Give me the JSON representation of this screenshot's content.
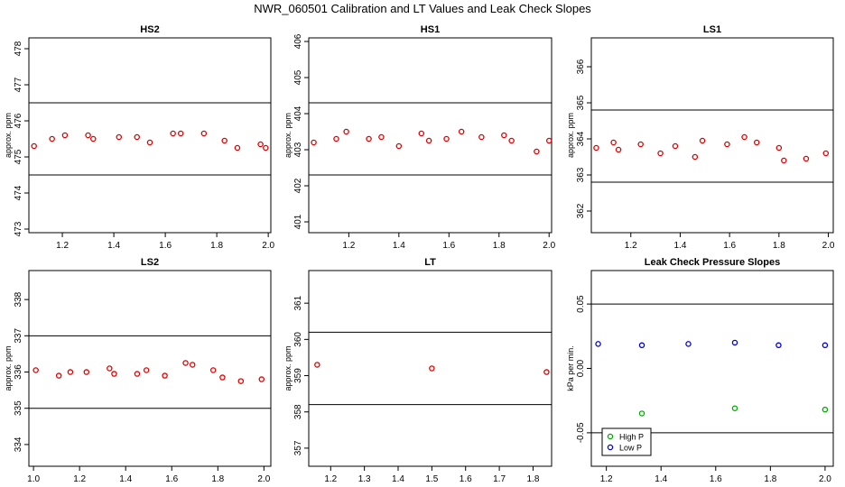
{
  "title": "NWR_060501  Calibration and LT Values and Leak Check Slopes",
  "chart_data": [
    {
      "type": "scatter",
      "title": "HS2",
      "ylabel": "approx. ppm",
      "xlim": [
        1.07,
        2.01
      ],
      "ylim": [
        472.9,
        478.3
      ],
      "xticks": [
        "1.2",
        "1.4",
        "1.6",
        "1.8",
        "2.0"
      ],
      "yticks": [
        "473",
        "474",
        "475",
        "476",
        "477",
        "478"
      ],
      "hlines": [
        476.5,
        474.5
      ],
      "series": [
        {
          "color": "#dd0000",
          "x": [
            1.09,
            1.16,
            1.21,
            1.3,
            1.32,
            1.42,
            1.49,
            1.54,
            1.63,
            1.66,
            1.75,
            1.83,
            1.88,
            1.97,
            1.99
          ],
          "y": [
            475.3,
            475.5,
            475.6,
            475.6,
            475.5,
            475.55,
            475.55,
            475.4,
            475.65,
            475.65,
            475.65,
            475.45,
            475.25,
            475.35,
            475.25
          ]
        }
      ]
    },
    {
      "type": "scatter",
      "title": "HS1",
      "ylabel": "approx. ppm",
      "xlim": [
        1.04,
        2.01
      ],
      "ylim": [
        400.7,
        406.1
      ],
      "xticks": [
        "1.2",
        "1.4",
        "1.6",
        "1.8",
        "2.0"
      ],
      "yticks": [
        "401",
        "402",
        "403",
        "404",
        "405",
        "406"
      ],
      "hlines": [
        404.3,
        402.3
      ],
      "series": [
        {
          "color": "#dd0000",
          "x": [
            1.06,
            1.15,
            1.19,
            1.28,
            1.33,
            1.4,
            1.49,
            1.52,
            1.59,
            1.65,
            1.73,
            1.82,
            1.85,
            1.95,
            2.0
          ],
          "y": [
            403.2,
            403.3,
            403.5,
            403.3,
            403.35,
            403.1,
            403.45,
            403.25,
            403.3,
            403.5,
            403.35,
            403.4,
            403.25,
            402.95,
            403.25
          ]
        }
      ]
    },
    {
      "type": "scatter",
      "title": "LS1",
      "ylabel": "approx. ppm",
      "xlim": [
        1.04,
        2.02
      ],
      "ylim": [
        361.4,
        366.8
      ],
      "xticks": [
        "1.2",
        "1.4",
        "1.6",
        "1.8",
        "2.0"
      ],
      "yticks": [
        "362",
        "363",
        "364",
        "365",
        "366"
      ],
      "hlines": [
        364.8,
        362.8
      ],
      "series": [
        {
          "color": "#dd0000",
          "x": [
            1.06,
            1.13,
            1.15,
            1.24,
            1.32,
            1.38,
            1.46,
            1.49,
            1.59,
            1.66,
            1.71,
            1.8,
            1.82,
            1.91,
            1.99
          ],
          "y": [
            363.75,
            363.9,
            363.7,
            363.85,
            363.6,
            363.8,
            363.5,
            363.95,
            363.85,
            364.05,
            363.9,
            363.75,
            363.4,
            363.45,
            363.6
          ]
        }
      ]
    },
    {
      "type": "scatter",
      "title": "LS2",
      "ylabel": "approx. ppm",
      "xlim": [
        0.98,
        2.03
      ],
      "ylim": [
        333.4,
        338.8
      ],
      "xticks": [
        "1.0",
        "1.2",
        "1.4",
        "1.6",
        "1.8",
        "2.0"
      ],
      "yticks": [
        "334",
        "335",
        "336",
        "337",
        "338"
      ],
      "hlines": [
        337.0,
        335.0
      ],
      "series": [
        {
          "color": "#dd0000",
          "x": [
            1.01,
            1.11,
            1.16,
            1.23,
            1.33,
            1.35,
            1.45,
            1.49,
            1.57,
            1.66,
            1.69,
            1.78,
            1.82,
            1.9,
            1.99
          ],
          "y": [
            336.05,
            335.9,
            336.0,
            336.0,
            336.1,
            335.95,
            335.95,
            336.05,
            335.9,
            336.25,
            336.2,
            336.05,
            335.85,
            335.75,
            335.8
          ]
        }
      ]
    },
    {
      "type": "scatter",
      "title": "LT",
      "ylabel": "approx. ppm",
      "xlim": [
        1.135,
        1.855
      ],
      "ylim": [
        356.5,
        361.9
      ],
      "xticks": [
        "1.2",
        "1.3",
        "1.4",
        "1.5",
        "1.6",
        "1.7",
        "1.8"
      ],
      "yticks": [
        "357",
        "358",
        "359",
        "360",
        "361"
      ],
      "hlines": [
        360.2,
        358.2
      ],
      "series": [
        {
          "color": "#dd0000",
          "x": [
            1.16,
            1.5,
            1.84
          ],
          "y": [
            359.3,
            359.2,
            359.1
          ]
        }
      ]
    },
    {
      "type": "scatter",
      "title": "Leak Check Pressure Slopes",
      "ylabel": "kPa per min.",
      "xlim": [
        1.145,
        2.03
      ],
      "ylim": [
        -0.076,
        0.076
      ],
      "xticks": [
        "1.2",
        "1.4",
        "1.6",
        "1.8",
        "2.0"
      ],
      "yticks": [
        "-0.05",
        "0.00",
        "0.05"
      ],
      "hlines": [
        0.05,
        -0.05
      ],
      "legend": "bottom-left",
      "series": [
        {
          "name": "High P",
          "color": "#00aa00",
          "x": [
            1.33,
            1.67,
            2.0
          ],
          "y": [
            -0.035,
            -0.031,
            -0.032
          ]
        },
        {
          "name": "Low P",
          "color": "#0000dd",
          "x": [
            1.17,
            1.33,
            1.5,
            1.67,
            1.83,
            2.0
          ],
          "y": [
            0.019,
            0.018,
            0.019,
            0.02,
            0.018,
            0.018
          ]
        }
      ]
    }
  ]
}
